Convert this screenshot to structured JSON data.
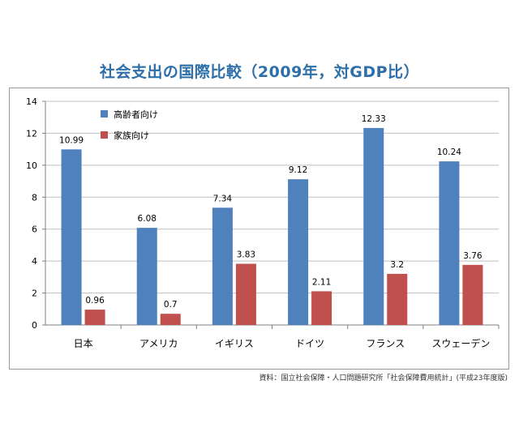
{
  "title": "社会支出の国際比較（2009年，対GDP比）",
  "source": "資料：国立社会保障・人口問題研究所「社会保障費用統計」(平成23年度版)",
  "colors": {
    "series1": "#4f81bd",
    "series2": "#c0504d",
    "grid": "#bfbfbf",
    "axis": "#808080"
  },
  "chart_data": {
    "type": "bar",
    "title": "社会支出の国際比較（2009年，対GDP比）",
    "categories": [
      "日本",
      "アメリカ",
      "イギリス",
      "ドイツ",
      "フランス",
      "スウェーデン"
    ],
    "series": [
      {
        "name": "高齢者向け",
        "values": [
          10.99,
          6.08,
          7.34,
          9.12,
          12.33,
          10.24
        ],
        "labels": [
          "10.99",
          "6.08",
          "7.34",
          "9.12",
          "12.33",
          "10.24"
        ]
      },
      {
        "name": "家族向け",
        "values": [
          0.96,
          0.7,
          3.83,
          2.11,
          3.2,
          3.76
        ],
        "labels": [
          "0.96",
          "0.7",
          "3.83",
          "2.11",
          "3.2",
          "3.76"
        ]
      }
    ],
    "yticks": [
      "0",
      "2",
      "4",
      "6",
      "8",
      "10",
      "12",
      "14"
    ],
    "ylim": [
      0,
      14
    ],
    "grid": true,
    "legend_position": "top-left"
  }
}
